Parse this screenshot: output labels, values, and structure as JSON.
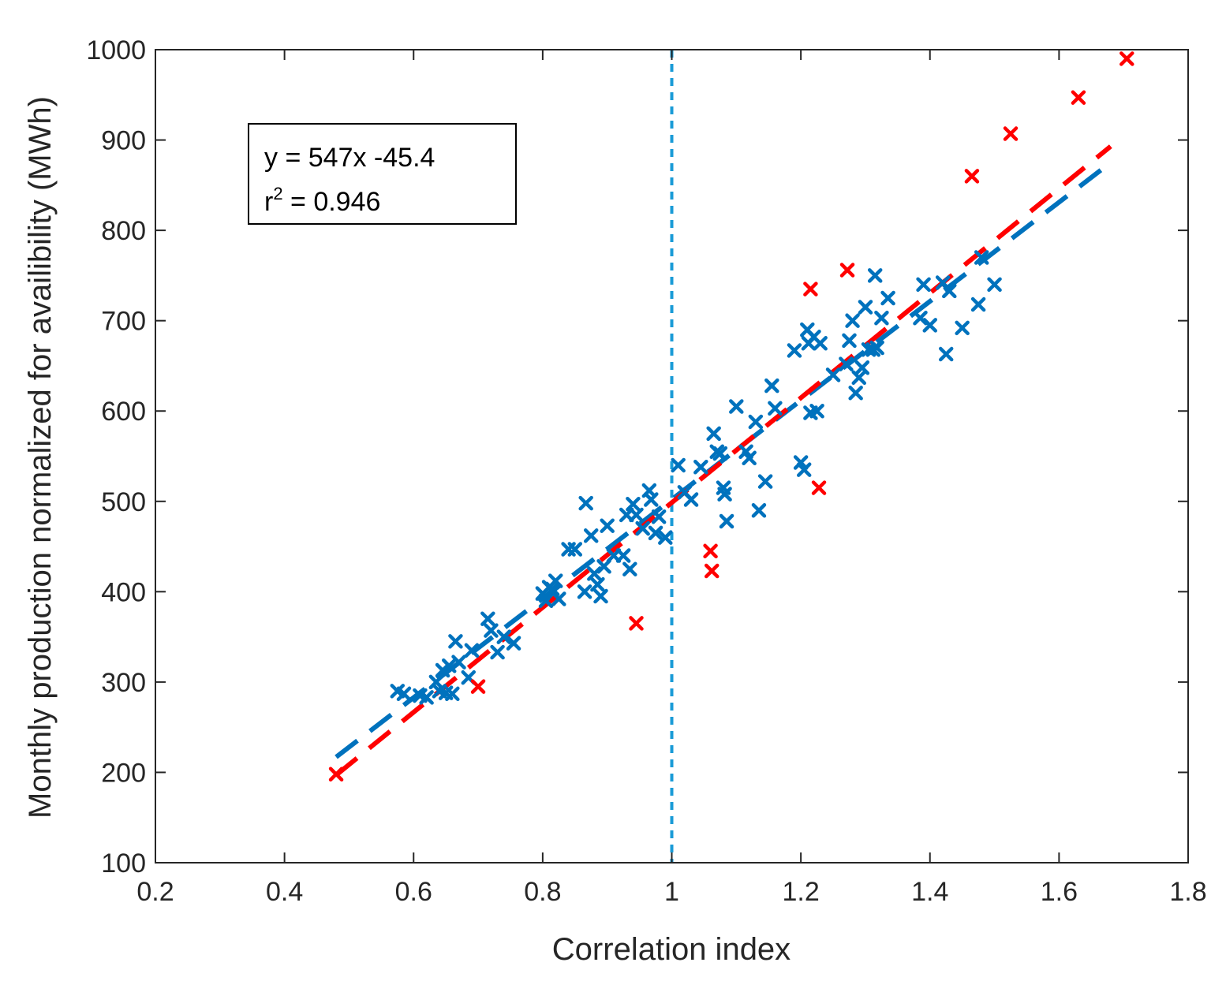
{
  "chart_data": {
    "type": "scatter",
    "title": "",
    "xlabel": "Correlation index",
    "ylabel": "Monthly production normalized for availibility (MWh)",
    "xlim": [
      0.2,
      1.8
    ],
    "ylim": [
      100,
      1000
    ],
    "xticks": [
      0.2,
      0.4,
      0.6,
      0.8,
      1,
      1.2,
      1.4,
      1.6,
      1.8
    ],
    "xtick_labels": [
      "0.2",
      "0.4",
      "0.6",
      "0.8",
      "1",
      "1.2",
      "1.4",
      "1.6",
      "1.8"
    ],
    "yticks": [
      100,
      200,
      300,
      400,
      500,
      600,
      700,
      800,
      900,
      1000
    ],
    "ytick_labels": [
      "100",
      "200",
      "300",
      "400",
      "500",
      "600",
      "700",
      "800",
      "900",
      "1000"
    ],
    "grid": false,
    "reference_line": {
      "x": 1,
      "color": "#1a9bd7",
      "style": "dotted"
    },
    "annotation": {
      "equation": "y = 547x -45.4",
      "r2_prefix": "r",
      "r2_exponent": "2",
      "r2_value": " = 0.946"
    },
    "series": [
      {
        "name": "blue",
        "marker": "x",
        "color": "#0072bd",
        "points": [
          [
            0.575,
            290
          ],
          [
            0.585,
            287
          ],
          [
            0.61,
            285
          ],
          [
            0.62,
            283
          ],
          [
            0.635,
            300
          ],
          [
            0.64,
            290
          ],
          [
            0.645,
            313
          ],
          [
            0.65,
            288
          ],
          [
            0.655,
            318
          ],
          [
            0.66,
            287
          ],
          [
            0.665,
            345
          ],
          [
            0.67,
            322
          ],
          [
            0.685,
            305
          ],
          [
            0.69,
            335
          ],
          [
            0.715,
            370
          ],
          [
            0.72,
            357
          ],
          [
            0.73,
            333
          ],
          [
            0.74,
            350
          ],
          [
            0.755,
            343
          ],
          [
            0.8,
            398
          ],
          [
            0.805,
            390
          ],
          [
            0.81,
            405
          ],
          [
            0.815,
            403
          ],
          [
            0.82,
            412
          ],
          [
            0.825,
            392
          ],
          [
            0.84,
            447
          ],
          [
            0.85,
            447
          ],
          [
            0.865,
            400
          ],
          [
            0.867,
            498
          ],
          [
            0.875,
            462
          ],
          [
            0.88,
            420
          ],
          [
            0.885,
            408
          ],
          [
            0.89,
            395
          ],
          [
            0.895,
            428
          ],
          [
            0.9,
            473
          ],
          [
            0.91,
            440
          ],
          [
            0.925,
            440
          ],
          [
            0.93,
            485
          ],
          [
            0.935,
            425
          ],
          [
            0.94,
            497
          ],
          [
            0.945,
            485
          ],
          [
            0.955,
            470
          ],
          [
            0.965,
            512
          ],
          [
            0.968,
            502
          ],
          [
            0.975,
            465
          ],
          [
            0.98,
            483
          ],
          [
            0.99,
            460
          ],
          [
            1.01,
            540
          ],
          [
            1.02,
            510
          ],
          [
            1.03,
            502
          ],
          [
            1.045,
            538
          ],
          [
            1.065,
            575
          ],
          [
            1.07,
            555
          ],
          [
            1.075,
            553
          ],
          [
            1.08,
            515
          ],
          [
            1.082,
            508
          ],
          [
            1.085,
            478
          ],
          [
            1.1,
            605
          ],
          [
            1.115,
            555
          ],
          [
            1.12,
            548
          ],
          [
            1.13,
            588
          ],
          [
            1.135,
            490
          ],
          [
            1.145,
            522
          ],
          [
            1.155,
            628
          ],
          [
            1.16,
            603
          ],
          [
            1.19,
            667
          ],
          [
            1.2,
            543
          ],
          [
            1.205,
            535
          ],
          [
            1.21,
            690
          ],
          [
            1.212,
            675
          ],
          [
            1.215,
            598
          ],
          [
            1.22,
            682
          ],
          [
            1.225,
            600
          ],
          [
            1.23,
            675
          ],
          [
            1.25,
            640
          ],
          [
            1.27,
            652
          ],
          [
            1.275,
            678
          ],
          [
            1.28,
            700
          ],
          [
            1.285,
            620
          ],
          [
            1.29,
            637
          ],
          [
            1.295,
            648
          ],
          [
            1.3,
            715
          ],
          [
            1.305,
            668
          ],
          [
            1.312,
            668
          ],
          [
            1.315,
            750
          ],
          [
            1.318,
            670
          ],
          [
            1.325,
            703
          ],
          [
            1.335,
            725
          ],
          [
            1.385,
            703
          ],
          [
            1.39,
            740
          ],
          [
            1.4,
            695
          ],
          [
            1.42,
            742
          ],
          [
            1.425,
            663
          ],
          [
            1.43,
            733
          ],
          [
            1.45,
            692
          ],
          [
            1.475,
            718
          ],
          [
            1.48,
            770
          ],
          [
            1.5,
            740
          ]
        ]
      },
      {
        "name": "red",
        "marker": "x",
        "color": "#ff0000",
        "points": [
          [
            0.48,
            198
          ],
          [
            0.7,
            295
          ],
          [
            0.945,
            365
          ],
          [
            1.06,
            445
          ],
          [
            1.062,
            423
          ],
          [
            1.215,
            735
          ],
          [
            1.228,
            515
          ],
          [
            1.272,
            756
          ],
          [
            1.465,
            860
          ],
          [
            1.525,
            907
          ],
          [
            1.63,
            947
          ],
          [
            1.705,
            990
          ]
        ]
      }
    ],
    "fit_lines": [
      {
        "name": "blue fit",
        "color": "#0072bd",
        "style": "dashed",
        "x": [
          0.48,
          1.68
        ],
        "y": [
          217,
          875
        ]
      },
      {
        "name": "red fit",
        "color": "#ff0000",
        "style": "dashed",
        "x": [
          0.48,
          1.68
        ],
        "y": [
          197,
          893
        ]
      }
    ]
  }
}
